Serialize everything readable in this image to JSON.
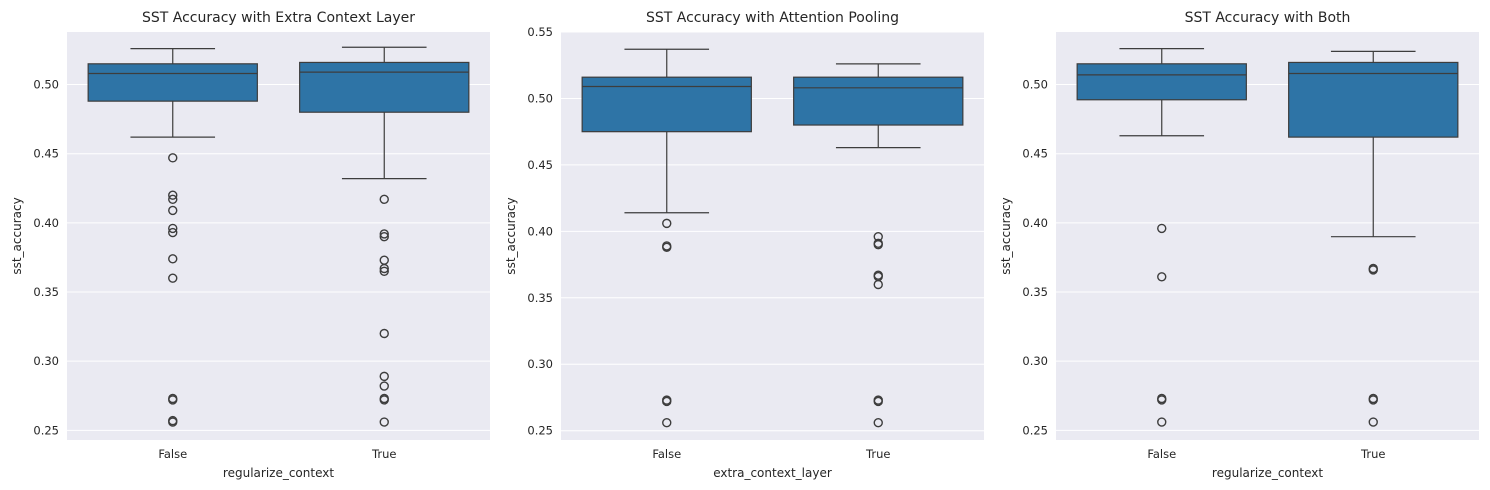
{
  "chart_data": [
    {
      "type": "box",
      "title": "SST Accuracy with Extra Context Layer",
      "xlabel": "regularize_context",
      "ylabel": "sst_accuracy",
      "ylim": [
        0.243,
        0.538
      ],
      "yticks": [
        0.25,
        0.3,
        0.35,
        0.4,
        0.45,
        0.5
      ],
      "categories": [
        "False",
        "True"
      ],
      "color": "#2e74a6",
      "boxes": [
        {
          "q1": 0.488,
          "median": 0.508,
          "q3": 0.515,
          "whisker_low": 0.462,
          "whisker_high": 0.526,
          "outliers": [
            0.447,
            0.42,
            0.417,
            0.409,
            0.396,
            0.393,
            0.374,
            0.36,
            0.273,
            0.272,
            0.257,
            0.256
          ]
        },
        {
          "q1": 0.48,
          "median": 0.509,
          "q3": 0.516,
          "whisker_low": 0.432,
          "whisker_high": 0.527,
          "outliers": [
            0.417,
            0.392,
            0.39,
            0.373,
            0.367,
            0.365,
            0.32,
            0.289,
            0.282,
            0.273,
            0.272,
            0.256
          ]
        }
      ]
    },
    {
      "type": "box",
      "title": "SST Accuracy with Attention Pooling",
      "xlabel": "extra_context_layer",
      "ylabel": "sst_accuracy",
      "ylim": [
        0.243,
        0.55
      ],
      "yticks": [
        0.25,
        0.3,
        0.35,
        0.4,
        0.45,
        0.5,
        0.55
      ],
      "categories": [
        "False",
        "True"
      ],
      "color": "#2e74a6",
      "boxes": [
        {
          "q1": 0.475,
          "median": 0.509,
          "q3": 0.516,
          "whisker_low": 0.414,
          "whisker_high": 0.537,
          "outliers": [
            0.406,
            0.389,
            0.388,
            0.273,
            0.272,
            0.256
          ]
        },
        {
          "q1": 0.48,
          "median": 0.508,
          "q3": 0.516,
          "whisker_low": 0.463,
          "whisker_high": 0.526,
          "outliers": [
            0.396,
            0.391,
            0.39,
            0.367,
            0.366,
            0.36,
            0.273,
            0.272,
            0.256
          ]
        }
      ]
    },
    {
      "type": "box",
      "title": "SST Accuracy with Both",
      "xlabel": "regularize_context",
      "ylabel": "sst_accuracy",
      "ylim": [
        0.243,
        0.538
      ],
      "yticks": [
        0.25,
        0.3,
        0.35,
        0.4,
        0.45,
        0.5
      ],
      "categories": [
        "False",
        "True"
      ],
      "color": "#2e74a6",
      "boxes": [
        {
          "q1": 0.489,
          "median": 0.507,
          "q3": 0.515,
          "whisker_low": 0.463,
          "whisker_high": 0.526,
          "outliers": [
            0.396,
            0.361,
            0.273,
            0.272,
            0.256
          ]
        },
        {
          "q1": 0.462,
          "median": 0.508,
          "q3": 0.516,
          "whisker_low": 0.39,
          "whisker_high": 0.524,
          "outliers": [
            0.367,
            0.366,
            0.273,
            0.272,
            0.256
          ]
        }
      ]
    }
  ]
}
